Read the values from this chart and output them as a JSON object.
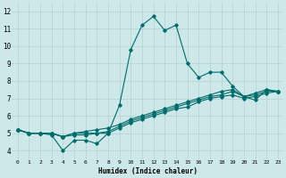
{
  "xlabel": "Humidex (Indice chaleur)",
  "background_color": "#cde8e8",
  "grid_color": "#b8d4d4",
  "line_color": "#006b6b",
  "xlim": [
    -0.5,
    23.5
  ],
  "ylim": [
    3.5,
    12.5
  ],
  "xticks": [
    0,
    1,
    2,
    3,
    4,
    5,
    6,
    7,
    8,
    9,
    10,
    11,
    12,
    13,
    14,
    15,
    16,
    17,
    18,
    19,
    20,
    21,
    22,
    23
  ],
  "yticks": [
    4,
    5,
    6,
    7,
    8,
    9,
    10,
    11,
    12
  ],
  "series": [
    [
      5.2,
      5.0,
      5.0,
      4.9,
      4.0,
      4.6,
      4.6,
      4.4,
      5.0,
      6.6,
      9.8,
      11.2,
      11.7,
      10.9,
      11.2,
      9.0,
      8.2,
      8.5,
      8.5,
      7.7,
      7.1,
      6.9,
      7.5,
      7.4
    ],
    [
      5.2,
      5.0,
      5.0,
      5.0,
      4.8,
      5.0,
      5.1,
      5.2,
      5.3,
      5.5,
      5.8,
      6.0,
      6.2,
      6.4,
      6.6,
      6.8,
      7.0,
      7.2,
      7.4,
      7.5,
      7.1,
      7.3,
      7.5,
      7.4
    ],
    [
      5.2,
      5.0,
      5.0,
      5.0,
      4.8,
      5.0,
      5.0,
      5.0,
      5.1,
      5.4,
      5.7,
      5.9,
      6.1,
      6.3,
      6.5,
      6.7,
      6.9,
      7.1,
      7.2,
      7.4,
      7.1,
      7.2,
      7.4,
      7.4
    ],
    [
      5.2,
      5.0,
      5.0,
      5.0,
      4.8,
      4.9,
      4.9,
      5.0,
      5.0,
      5.3,
      5.6,
      5.8,
      6.0,
      6.2,
      6.4,
      6.5,
      6.8,
      7.0,
      7.1,
      7.2,
      7.0,
      7.1,
      7.3,
      7.4
    ]
  ],
  "marker": "D",
  "markersize": 1.8,
  "linewidth": 0.8,
  "xlabel_fontsize": 5.5,
  "tick_fontsize_x": 4.5,
  "tick_fontsize_y": 5.5
}
